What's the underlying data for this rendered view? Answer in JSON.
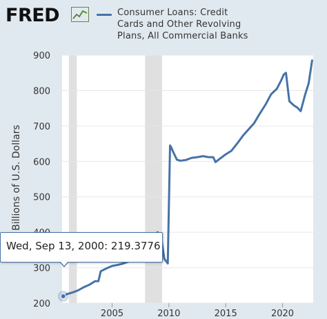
{
  "header": {
    "logo_text": "FRED",
    "logo_icon": "fred-chart-icon",
    "legend_label": "Consumer Loans: Credit\nCards and Other Revolving\nPlans, All Commercial Banks"
  },
  "colors": {
    "background": "#e1e9f0",
    "plot_background": "#ffffff",
    "series_line": "#4572a7",
    "recession_shading": "#e0e0e0",
    "grid": "#e6e6e6",
    "axis_text": "#333333"
  },
  "tooltip": {
    "date": "Wed, Sep 13, 2000:",
    "value": "219.3776"
  },
  "chart_data": {
    "type": "line",
    "title": "",
    "xlabel": "",
    "ylabel": "Billions of U.S. Dollars",
    "xlim": [
      2000.6,
      2022.7
    ],
    "ylim": [
      200,
      900
    ],
    "yticks": [
      200,
      300,
      400,
      500,
      600,
      700,
      800,
      900
    ],
    "xticks": [
      2005,
      2010,
      2015,
      2020
    ],
    "ytick_labels": [
      "200",
      "300",
      "400",
      "500",
      "600",
      "700",
      "800",
      "900"
    ],
    "xtick_labels": [
      "2005",
      "2010",
      "2015",
      "2020"
    ],
    "grid": "horizontal",
    "recessions": [
      [
        2001.2,
        2001.9
      ],
      [
        2007.9,
        2009.4
      ]
    ],
    "highlight_point": {
      "x": 2000.7,
      "y": 219.3776
    },
    "series": [
      {
        "name": "Consumer Loans: Credit Cards and Other Revolving Plans, All Commercial Banks",
        "x": [
          2000.7,
          2001.0,
          2001.5,
          2002.0,
          2002.5,
          2003.0,
          2003.5,
          2003.8,
          2004.0,
          2004.5,
          2005.0,
          2005.5,
          2006.0,
          2006.5,
          2007.0,
          2007.5,
          2008.0,
          2008.5,
          2009.0,
          2009.3,
          2009.6,
          2009.9,
          2010.1,
          2010.2,
          2010.4,
          2010.7,
          2011.0,
          2011.5,
          2012.0,
          2012.5,
          2013.0,
          2013.5,
          2013.9,
          2014.1,
          2014.5,
          2015.0,
          2015.5,
          2016.0,
          2016.5,
          2017.0,
          2017.5,
          2018.0,
          2018.5,
          2019.0,
          2019.5,
          2019.9,
          2020.1,
          2020.3,
          2020.6,
          2021.0,
          2021.3,
          2021.6,
          2022.0,
          2022.3,
          2022.6
        ],
        "values": [
          219,
          225,
          230,
          236,
          245,
          252,
          262,
          262,
          290,
          298,
          305,
          308,
          312,
          318,
          328,
          338,
          360,
          380,
          400,
          390,
          325,
          312,
          645,
          640,
          625,
          605,
          602,
          604,
          610,
          612,
          615,
          612,
          612,
          598,
          608,
          620,
          630,
          650,
          672,
          690,
          708,
          735,
          760,
          790,
          805,
          830,
          845,
          850,
          770,
          758,
          752,
          742,
          790,
          820,
          885
        ]
      }
    ]
  }
}
